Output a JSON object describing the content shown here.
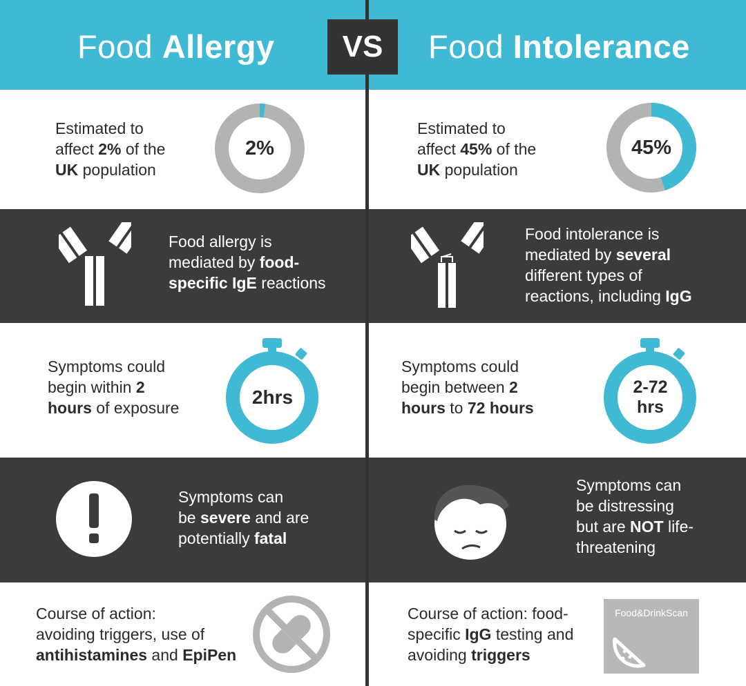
{
  "header": {
    "left_title_light": "Food",
    "left_title_bold": "Allergy",
    "vs": "VS",
    "right_title_light": "Food",
    "right_title_bold": "Intolerance"
  },
  "colors": {
    "accent": "#3fb9d4",
    "dark": "#3b3b3d",
    "grey": "#b3b3b3"
  },
  "prevalence": {
    "allergy": {
      "l1": "Estimated to",
      "l2a": "affect ",
      "l2b": "2%",
      "l2c": " of the",
      "l3a": "UK",
      "l3b": " population",
      "ring": "2%",
      "percent": 2
    },
    "intolerance": {
      "l1": "Estimated to",
      "l2a": "affect ",
      "l2b": "45%",
      "l2c": " of the",
      "l3a": "UK",
      "l3b": " population",
      "ring": "45%",
      "percent": 45
    }
  },
  "mediation": {
    "allergy": {
      "l1": "Food allergy is",
      "l2a": "mediated by ",
      "l2b": "food-",
      "l3a": "specific IgE",
      "l3b": " reactions",
      "icon": "antibody-icon"
    },
    "intolerance": {
      "l1": "Food intolerance is",
      "l2a": "mediated by ",
      "l2b": "several",
      "l3": "different types of",
      "l4a": "reactions, including ",
      "l4b": "IgG",
      "icon": "antibody-icon"
    }
  },
  "onset": {
    "allergy": {
      "l1": "Symptoms could",
      "l2a": "begin within ",
      "l2b": "2",
      "l3a": "hours",
      "l3b": " of exposure",
      "timer": "2hrs",
      "icon": "stopwatch-icon"
    },
    "intolerance": {
      "l1": "Symptoms could",
      "l2a": "begin between ",
      "l2b": "2",
      "l3a": "hours",
      "l3b": " to ",
      "l3c": "72 hours",
      "timer_l1": "2-72",
      "timer_l2": "hrs",
      "icon": "stopwatch-icon"
    }
  },
  "severity": {
    "allergy": {
      "l1": "Symptoms can",
      "l2a": "be ",
      "l2b": "severe",
      "l2c": " and are",
      "l3a": "potentially ",
      "l3b": "fatal",
      "icon": "exclamation-icon"
    },
    "intolerance": {
      "l1": "Symptoms can",
      "l2": "be distressing",
      "l3a": "but are ",
      "l3b": "NOT",
      "l3c": " life-",
      "l4": "threatening",
      "icon": "sad-face-icon"
    }
  },
  "action": {
    "allergy": {
      "l1": "Course of action:",
      "l2": "avoiding triggers, use of",
      "l3a": "antihistamines",
      "l3b": " and ",
      "l3c": "EpiPen",
      "icon": "no-pill-icon"
    },
    "intolerance": {
      "l1": "Course of action: food-",
      "l2a": "specific ",
      "l2b": "IgG",
      "l2c": " testing and",
      "l3a": "avoiding ",
      "l3b": "triggers",
      "logo_text": "Food&DrinkScan",
      "icon": "watermelon-icon"
    }
  }
}
